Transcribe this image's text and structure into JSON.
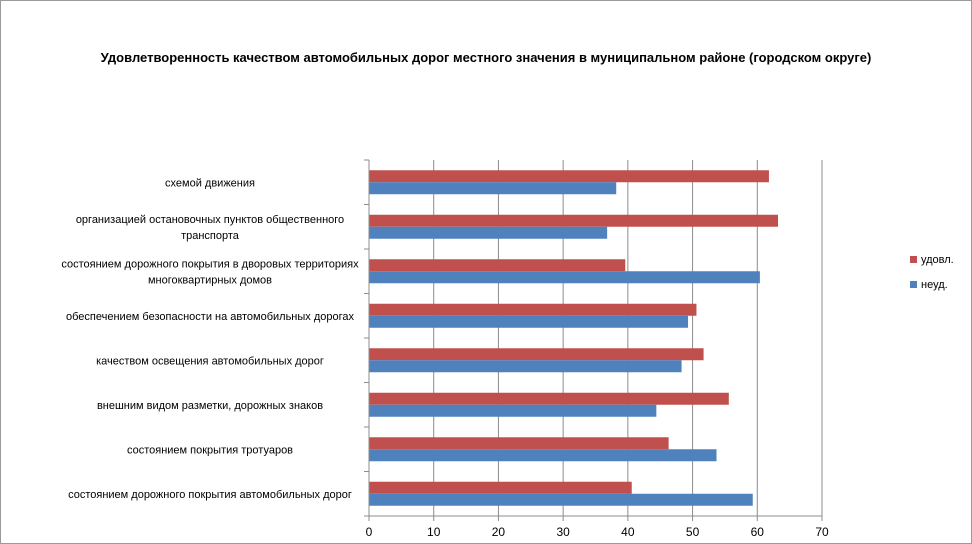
{
  "chart_data": {
    "type": "bar",
    "orientation": "horizontal",
    "title": "Удовлетворенность качеством автомобильных дорог местного значения в муниципальном районе (городском округе)",
    "categories": [
      [
        "схемой движения"
      ],
      [
        "организацией остановочных пунктов общественного",
        "транспорта"
      ],
      [
        "состоянием дорожного покрытия в дворовых территориях",
        "многоквартирных домов"
      ],
      [
        "обеспечением  безопасности на автомобильных дорогах"
      ],
      [
        "качеством освещения  автомобильных дорог"
      ],
      [
        "внешним  видом разметки, дорожных знаков"
      ],
      [
        "состоянием покрытия тротуаров"
      ],
      [
        "состоянием дорожного покрытия автомобильных дорог"
      ]
    ],
    "series": [
      {
        "name": "удовл.",
        "color": "#c0504d",
        "values": [
          61.8,
          63.2,
          39.6,
          50.6,
          51.7,
          55.6,
          46.3,
          40.6
        ]
      },
      {
        "name": "неуд.",
        "color": "#4f81bd",
        "values": [
          38.2,
          36.8,
          60.4,
          49.3,
          48.3,
          44.4,
          53.7,
          59.3
        ]
      }
    ],
    "xlim": [
      0,
      70
    ],
    "xticks": [
      0,
      10,
      20,
      30,
      40,
      50,
      60,
      70
    ],
    "grid": true,
    "legend": "right"
  }
}
